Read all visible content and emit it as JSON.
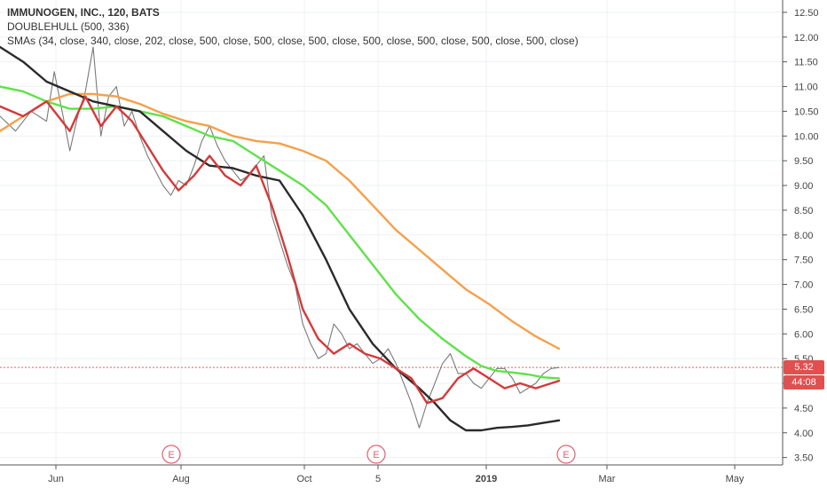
{
  "legend": {
    "title": "IMMUNOGEN, INC., 120, BATS",
    "line2": "DOUBLEHULL (500, 336)",
    "line3": "SMAs (34, close, 340, close, 202, close, 500, close, 500, close, 500, close, 500, close, 500, close, 500, close, 500, close)"
  },
  "badges": {
    "last_price": "5.32",
    "timer": "44:08"
  },
  "colors": {
    "price": "#7a7a7a",
    "sma_red": "#d43a3a",
    "sma_black": "#2a2a2a",
    "sma_green": "#5fe24a",
    "sma_orange": "#f5a04a",
    "last_price_line": "#e06060",
    "badge_price": "#e05050",
    "badge_timer": "#e05050",
    "earnings_marker": "#e06070"
  },
  "chart_data": {
    "type": "line",
    "title": "IMMUNOGEN, INC., 120, BATS",
    "y_axis_ticks": [
      "12.50",
      "12.00",
      "11.50",
      "11.00",
      "10.50",
      "10.00",
      "9.50",
      "9.00",
      "8.50",
      "8.00",
      "7.50",
      "7.00",
      "6.50",
      "6.00",
      "5.50",
      "5.00",
      "4.50",
      "4.00",
      "3.50"
    ],
    "ylim": [
      3.35,
      12.75
    ],
    "x_axis_ticks": [
      "Jun",
      "Aug",
      "Oct",
      "5",
      "2019",
      "Mar",
      "May"
    ],
    "earnings_markers": [
      {
        "label": "E",
        "at": "Aug"
      },
      {
        "label": "E",
        "at": "Nov 5"
      },
      {
        "label": "E",
        "at": "Feb"
      }
    ],
    "last_price": 5.32,
    "series": [
      {
        "key": "price",
        "x": [
          0,
          0.02,
          0.04,
          0.06,
          0.07,
          0.08,
          0.09,
          0.1,
          0.11,
          0.12,
          0.13,
          0.14,
          0.15,
          0.16,
          0.17,
          0.18,
          0.19,
          0.2,
          0.21,
          0.22,
          0.23,
          0.24,
          0.25,
          0.26,
          0.27,
          0.28,
          0.29,
          0.3,
          0.31,
          0.32,
          0.33,
          0.34,
          0.35,
          0.36,
          0.37,
          0.38,
          0.39,
          0.4,
          0.41,
          0.42,
          0.43,
          0.44,
          0.45,
          0.46,
          0.47,
          0.48,
          0.49,
          0.5,
          0.51,
          0.52,
          0.53,
          0.54,
          0.55,
          0.56,
          0.57,
          0.58,
          0.59,
          0.6,
          0.61,
          0.62,
          0.63,
          0.64,
          0.65,
          0.66,
          0.67,
          0.68,
          0.69,
          0.7,
          0.71,
          0.72
        ],
        "values": [
          10.4,
          10.1,
          10.5,
          10.3,
          11.3,
          10.5,
          9.7,
          10.4,
          10.9,
          11.8,
          10.0,
          10.8,
          11.0,
          10.2,
          10.5,
          10.0,
          9.6,
          9.3,
          9.0,
          8.8,
          9.1,
          9.0,
          9.4,
          9.9,
          10.2,
          9.8,
          9.5,
          9.3,
          9.1,
          9.2,
          9.4,
          9.6,
          8.4,
          7.9,
          7.4,
          7.0,
          6.2,
          5.8,
          5.5,
          5.6,
          6.2,
          6.0,
          5.7,
          5.8,
          5.6,
          5.4,
          5.5,
          5.7,
          5.4,
          5.0,
          4.6,
          4.1,
          4.6,
          5.0,
          5.4,
          5.6,
          5.2,
          5.2,
          5.0,
          4.9,
          5.1,
          5.3,
          5.3,
          5.1,
          4.8,
          4.9,
          5.0,
          5.2,
          5.3,
          5.32
        ]
      },
      {
        "key": "sma_red",
        "x": [
          0,
          0.03,
          0.06,
          0.09,
          0.11,
          0.13,
          0.15,
          0.17,
          0.19,
          0.21,
          0.23,
          0.25,
          0.27,
          0.29,
          0.31,
          0.33,
          0.35,
          0.37,
          0.39,
          0.41,
          0.43,
          0.45,
          0.47,
          0.49,
          0.51,
          0.53,
          0.55,
          0.57,
          0.59,
          0.61,
          0.63,
          0.65,
          0.67,
          0.69,
          0.71,
          0.72
        ],
        "values": [
          10.6,
          10.4,
          10.7,
          10.1,
          10.8,
          10.2,
          10.6,
          10.3,
          9.8,
          9.3,
          8.9,
          9.2,
          9.6,
          9.2,
          9.0,
          9.4,
          8.6,
          7.6,
          6.5,
          5.9,
          5.6,
          5.8,
          5.6,
          5.5,
          5.3,
          5.1,
          4.6,
          4.7,
          5.1,
          5.3,
          5.1,
          4.9,
          5.0,
          4.9,
          5.0,
          5.05
        ]
      },
      {
        "key": "sma_black",
        "x": [
          0,
          0.03,
          0.06,
          0.09,
          0.12,
          0.15,
          0.18,
          0.21,
          0.24,
          0.27,
          0.3,
          0.33,
          0.36,
          0.39,
          0.42,
          0.45,
          0.48,
          0.51,
          0.54,
          0.56,
          0.58,
          0.6,
          0.62,
          0.64,
          0.66,
          0.68,
          0.7,
          0.72
        ],
        "values": [
          11.8,
          11.5,
          11.1,
          10.9,
          10.7,
          10.6,
          10.5,
          10.1,
          9.7,
          9.4,
          9.35,
          9.2,
          9.1,
          8.4,
          7.5,
          6.5,
          5.8,
          5.3,
          4.9,
          4.6,
          4.25,
          4.05,
          4.05,
          4.1,
          4.12,
          4.15,
          4.2,
          4.25
        ]
      },
      {
        "key": "sma_green",
        "x": [
          0,
          0.03,
          0.06,
          0.09,
          0.12,
          0.15,
          0.18,
          0.21,
          0.24,
          0.27,
          0.3,
          0.33,
          0.36,
          0.39,
          0.42,
          0.45,
          0.48,
          0.51,
          0.54,
          0.57,
          0.6,
          0.62,
          0.64,
          0.66,
          0.68,
          0.7,
          0.72
        ],
        "values": [
          11.0,
          10.9,
          10.7,
          10.55,
          10.55,
          10.6,
          10.5,
          10.4,
          10.2,
          10.0,
          9.9,
          9.6,
          9.3,
          9.0,
          8.6,
          8.0,
          7.4,
          6.8,
          6.3,
          5.9,
          5.55,
          5.35,
          5.25,
          5.22,
          5.18,
          5.12,
          5.1
        ]
      },
      {
        "key": "sma_orange",
        "x": [
          0,
          0.03,
          0.06,
          0.09,
          0.12,
          0.15,
          0.18,
          0.21,
          0.24,
          0.27,
          0.3,
          0.33,
          0.36,
          0.39,
          0.42,
          0.45,
          0.48,
          0.51,
          0.54,
          0.57,
          0.6,
          0.63,
          0.66,
          0.69,
          0.72
        ],
        "values": [
          10.1,
          10.4,
          10.7,
          10.85,
          10.85,
          10.8,
          10.65,
          10.45,
          10.3,
          10.2,
          10.0,
          9.9,
          9.85,
          9.7,
          9.5,
          9.1,
          8.6,
          8.1,
          7.7,
          7.3,
          6.9,
          6.6,
          6.25,
          5.95,
          5.7
        ]
      }
    ]
  }
}
